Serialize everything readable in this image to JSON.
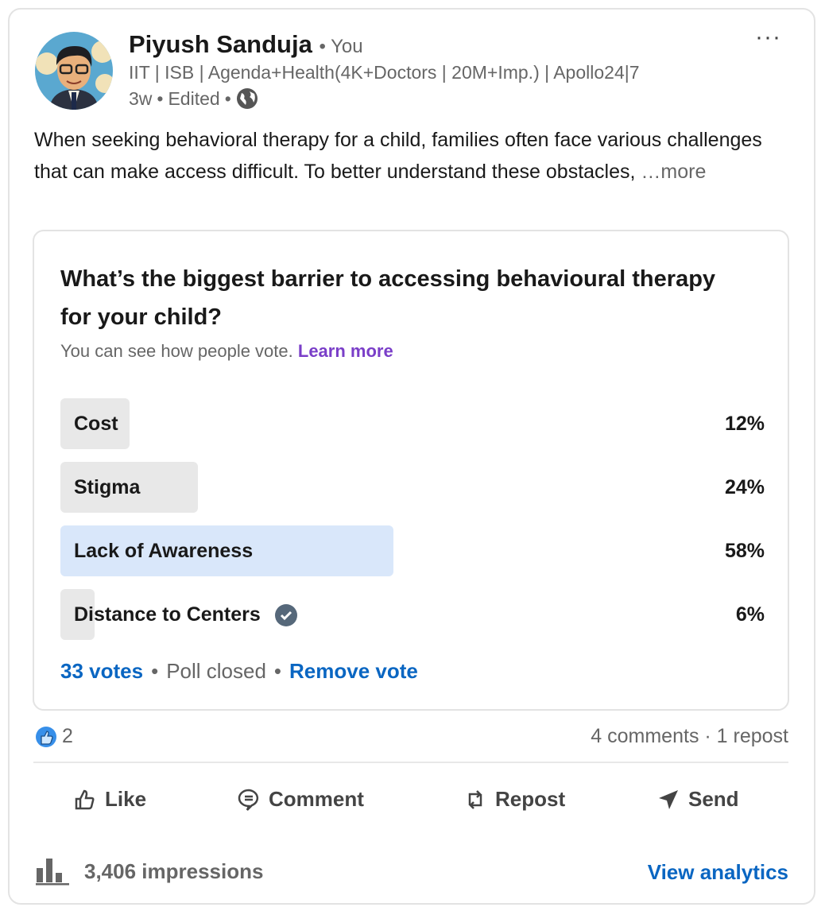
{
  "post": {
    "author": "Piyush Sanduja",
    "relation": "• You",
    "headline": "IIT | ISB | Agenda+Health(4K+Doctors | 20M+Imp.) | Apollo24|7",
    "age": "3w",
    "edited": "Edited",
    "text": "When seeking behavioral therapy for a child, families often face various challenges that can make access difficult. To better understand these obstacles, ",
    "more": "…more"
  },
  "poll": {
    "question": "What’s the biggest barrier to accessing behavioural therapy for your child?",
    "visibility": "You can see how people vote.",
    "learn_more": "Learn more",
    "options": [
      {
        "label": "Cost",
        "percent": "12%",
        "value": 12
      },
      {
        "label": "Stigma",
        "percent": "24%",
        "value": 24
      },
      {
        "label": "Lack of Awareness",
        "percent": "58%",
        "value": 58,
        "leading": true
      },
      {
        "label": "Distance to Centers",
        "percent": "6%",
        "value": 6,
        "voted": true
      }
    ],
    "votes": "33 votes",
    "status": "Poll closed",
    "remove_vote": "Remove vote"
  },
  "social": {
    "reactions": "2",
    "comments_reposts": "4 comments · 1 repost"
  },
  "actions": {
    "like": "Like",
    "comment": "Comment",
    "repost": "Repost",
    "send": "Send"
  },
  "analytics": {
    "impressions": "3,406 impressions",
    "view": "View analytics"
  },
  "colors": {
    "accent": "#0a66c2",
    "link_purple": "#7a3ec8",
    "leading_bar": "#d9e7fa",
    "bar": "#e8e8e8"
  }
}
